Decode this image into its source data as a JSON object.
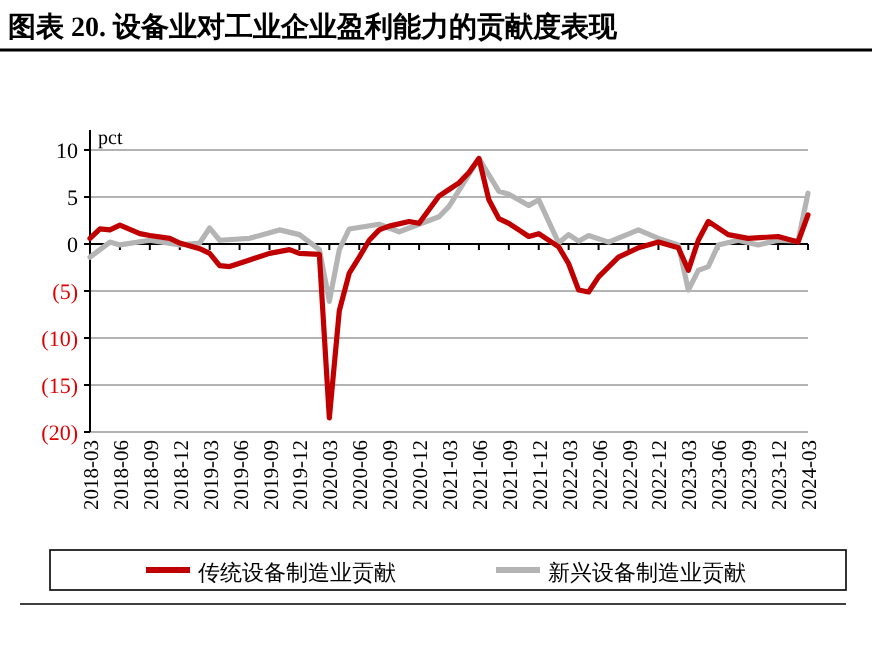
{
  "chart_data": {
    "type": "line",
    "title": "图表 20. 设备业对工业企业盈利能力的贡献度表现",
    "ylabel": "pct",
    "xlim": [
      "2018-03",
      "2024-03"
    ],
    "xticks": [
      "2018-03",
      "2018-06",
      "2018-09",
      "2018-12",
      "2019-03",
      "2019-06",
      "2019-09",
      "2019-12",
      "2020-03",
      "2020-06",
      "2020-09",
      "2020-12",
      "2021-03",
      "2021-06",
      "2021-09",
      "2021-12",
      "2022-03",
      "2022-06",
      "2022-09",
      "2022-12",
      "2023-03",
      "2023-06",
      "2023-09",
      "2023-12",
      "2024-03"
    ],
    "ylim": [
      -20,
      10
    ],
    "yticks": [
      10,
      5,
      0,
      {
        "value": -5,
        "label": "(5)"
      },
      {
        "value": -10,
        "label": "(10)"
      },
      {
        "value": -15,
        "label": "(15)"
      },
      {
        "value": -20,
        "label": "(20)"
      }
    ],
    "grid": "y",
    "legend": "bottom",
    "series": [
      {
        "name": "传统设备制造业贡献",
        "color": "#c00000",
        "x": [
          "2018-03",
          "2018-04",
          "2018-05",
          "2018-06",
          "2018-08",
          "2018-09",
          "2018-11",
          "2018-12",
          "2019-02",
          "2019-03",
          "2019-04",
          "2019-05",
          "2019-07",
          "2019-09",
          "2019-11",
          "2019-12",
          "2020-02",
          "2020-03",
          "2020-04",
          "2020-05",
          "2020-06",
          "2020-07",
          "2020-08",
          "2020-09",
          "2020-11",
          "2020-12",
          "2021-02",
          "2021-03",
          "2021-04",
          "2021-05",
          "2021-06",
          "2021-07",
          "2021-08",
          "2021-09",
          "2021-10",
          "2021-11",
          "2021-12",
          "2022-02",
          "2022-03",
          "2022-04",
          "2022-05",
          "2022-06",
          "2022-08",
          "2022-10",
          "2022-12",
          "2023-02",
          "2023-03",
          "2023-04",
          "2023-05",
          "2023-07",
          "2023-09",
          "2023-12",
          "2024-02",
          "2024-03"
        ],
        "values": [
          0.6,
          1.6,
          1.5,
          2.0,
          1.1,
          0.9,
          0.6,
          0.1,
          -0.5,
          -1.0,
          -2.3,
          -2.4,
          -1.7,
          -1.0,
          -0.6,
          -1.0,
          -1.1,
          -18.5,
          -7.1,
          -3.1,
          -1.4,
          0.4,
          1.5,
          1.9,
          2.4,
          2.2,
          5.1,
          5.8,
          6.5,
          7.6,
          9.1,
          4.7,
          2.7,
          2.2,
          1.5,
          0.8,
          1.1,
          -0.3,
          -2.1,
          -4.9,
          -5.1,
          -3.5,
          -1.4,
          -0.4,
          0.2,
          -0.4,
          -2.8,
          0.4,
          2.4,
          1.0,
          0.6,
          0.8,
          0.2,
          3.1
        ]
      },
      {
        "name": "新兴设备制造业贡献",
        "color": "#b4b4b4",
        "x": [
          "2018-03",
          "2018-05",
          "2018-06",
          "2018-09",
          "2018-12",
          "2019-02",
          "2019-03",
          "2019-04",
          "2019-07",
          "2019-10",
          "2019-12",
          "2020-02",
          "2020-03",
          "2020-04",
          "2020-05",
          "2020-08",
          "2020-10",
          "2020-12",
          "2021-02",
          "2021-03",
          "2021-06",
          "2021-08",
          "2021-09",
          "2021-11",
          "2021-12",
          "2022-02",
          "2022-03",
          "2022-04",
          "2022-05",
          "2022-07",
          "2022-10",
          "2022-12",
          "2023-02",
          "2023-03",
          "2023-04",
          "2023-05",
          "2023-06",
          "2023-08",
          "2023-10",
          "2023-12",
          "2024-02",
          "2024-03"
        ],
        "values": [
          -1.4,
          0.2,
          -0.1,
          0.4,
          -0.1,
          0.1,
          1.7,
          0.4,
          0.6,
          1.5,
          1.0,
          -0.6,
          -6.1,
          -0.6,
          1.6,
          2.1,
          1.3,
          2.1,
          2.9,
          4.0,
          9.1,
          5.6,
          5.3,
          4.1,
          4.7,
          0.1,
          1.0,
          0.3,
          0.9,
          0.2,
          1.5,
          0.6,
          -0.1,
          -4.9,
          -2.8,
          -2.4,
          -0.1,
          0.4,
          -0.1,
          0.4,
          0.3,
          5.4
        ]
      }
    ]
  }
}
